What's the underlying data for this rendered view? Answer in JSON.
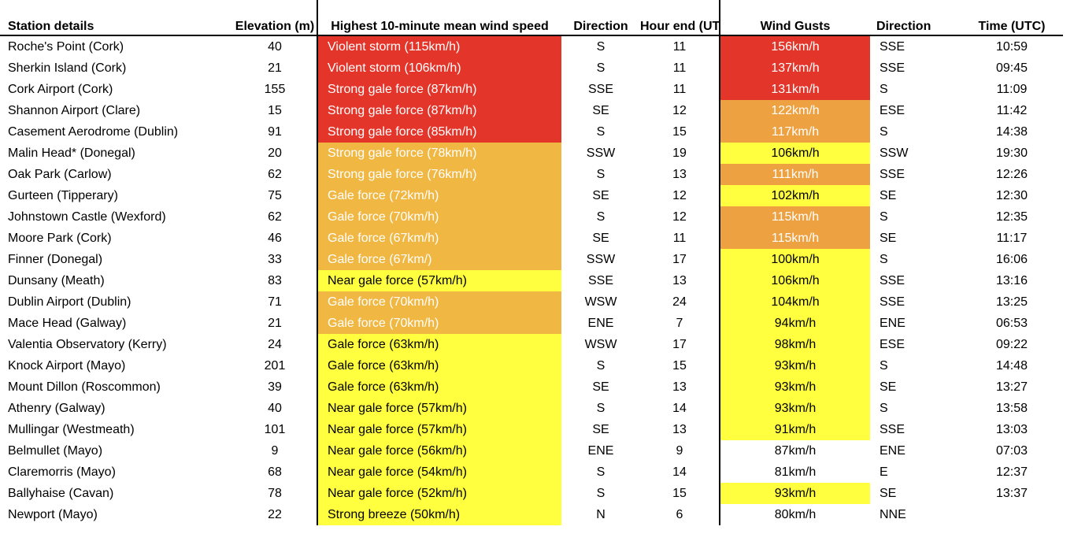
{
  "headers": {
    "station": "Station details",
    "elevation": "Elevation (m)",
    "mean_wind": "Highest 10-minute mean wind speed",
    "direction": "Direction",
    "hour_end": "Hour end (UTC)",
    "gusts": "Wind Gusts",
    "gust_direction": "Direction",
    "time": "Time (UTC)"
  },
  "colors": {
    "red": "#E4352A",
    "orange": "#EDA141",
    "amber": "#F0B742",
    "yellow": "#FFFF40",
    "white": "#FFFFFF"
  },
  "rows": [
    {
      "station": "Roche's Point (Cork)",
      "elevation": "40",
      "speed": "Violent storm (115km/h)",
      "direction": "S",
      "hour": "11",
      "gust": "156km/h",
      "gust_dir": "SSE",
      "time": "10:59",
      "speed_bg": "red",
      "gust_bg": "red"
    },
    {
      "station": "Sherkin Island (Cork)",
      "elevation": "21",
      "speed": "Violent storm (106km/h)",
      "direction": "S",
      "hour": "11",
      "gust": "137km/h",
      "gust_dir": "SSE",
      "time": "09:45",
      "speed_bg": "red",
      "gust_bg": "red"
    },
    {
      "station": "Cork Airport (Cork)",
      "elevation": "155",
      "speed": "Strong gale force (87km/h)",
      "direction": "SSE",
      "hour": "11",
      "gust": "131km/h",
      "gust_dir": "S",
      "time": "11:09",
      "speed_bg": "red",
      "gust_bg": "red"
    },
    {
      "station": "Shannon Airport (Clare)",
      "elevation": "15",
      "speed": "Strong gale force (87km/h)",
      "direction": "SE",
      "hour": "12",
      "gust": "122km/h",
      "gust_dir": "ESE",
      "time": "11:42",
      "speed_bg": "red",
      "gust_bg": "orange"
    },
    {
      "station": "Casement Aerodrome (Dublin)",
      "elevation": "91",
      "speed": "Strong gale force (85km/h)",
      "direction": "S",
      "hour": "15",
      "gust": "117km/h",
      "gust_dir": "S",
      "time": "14:38",
      "speed_bg": "red",
      "gust_bg": "orange"
    },
    {
      "station": "Malin Head* (Donegal)",
      "elevation": "20",
      "speed": "Strong gale force (78km/h)",
      "direction": "SSW",
      "hour": "19",
      "gust": "106km/h",
      "gust_dir": "SSW",
      "time": "19:30",
      "speed_bg": "amber",
      "gust_bg": "yellow"
    },
    {
      "station": "Oak Park (Carlow)",
      "elevation": "62",
      "speed": "Strong gale force (76km/h)",
      "direction": "S",
      "hour": "13",
      "gust": "111km/h",
      "gust_dir": "SSE",
      "time": "12:26",
      "speed_bg": "amber",
      "gust_bg": "orange"
    },
    {
      "station": "Gurteen (Tipperary)",
      "elevation": "75",
      "speed": "Gale force (72km/h)",
      "direction": "SE",
      "hour": "12",
      "gust": "102km/h",
      "gust_dir": "SE",
      "time": "12:30",
      "speed_bg": "amber",
      "gust_bg": "yellow"
    },
    {
      "station": "Johnstown Castle (Wexford)",
      "elevation": "62",
      "speed": "Gale force (70km/h)",
      "direction": "S",
      "hour": "12",
      "gust": "115km/h",
      "gust_dir": "S",
      "time": "12:35",
      "speed_bg": "amber",
      "gust_bg": "orange"
    },
    {
      "station": "Moore Park (Cork)",
      "elevation": "46",
      "speed": "Gale force (67km/h)",
      "direction": "SE",
      "hour": "11",
      "gust": "115km/h",
      "gust_dir": "SE",
      "time": "11:17",
      "speed_bg": "amber",
      "gust_bg": "orange"
    },
    {
      "station": "Finner (Donegal)",
      "elevation": "33",
      "speed": "Gale force (67km/)",
      "direction": "SSW",
      "hour": "17",
      "gust": "100km/h",
      "gust_dir": "S",
      "time": "16:06",
      "speed_bg": "amber",
      "gust_bg": "yellow"
    },
    {
      "station": "Dunsany (Meath)",
      "elevation": "83",
      "speed": "Near gale force (57km/h)",
      "direction": "SSE",
      "hour": "13",
      "gust": "106km/h",
      "gust_dir": "SSE",
      "time": "13:16",
      "speed_bg": "yellow",
      "gust_bg": "yellow"
    },
    {
      "station": "Dublin Airport (Dublin)",
      "elevation": "71",
      "speed": "Gale force (70km/h)",
      "direction": "WSW",
      "hour": "24",
      "gust": "104km/h",
      "gust_dir": "SSE",
      "time": "13:25",
      "speed_bg": "amber",
      "gust_bg": "yellow"
    },
    {
      "station": "Mace Head (Galway)",
      "elevation": "21",
      "speed": "Gale force (70km/h)",
      "direction": "ENE",
      "hour": "7",
      "gust": "94km/h",
      "gust_dir": "ENE",
      "time": "06:53",
      "speed_bg": "amber",
      "gust_bg": "yellow"
    },
    {
      "station": "Valentia Observatory (Kerry)",
      "elevation": "24",
      "speed": "Gale force (63km/h)",
      "direction": "WSW",
      "hour": "17",
      "gust": "98km/h",
      "gust_dir": "ESE",
      "time": "09:22",
      "speed_bg": "yellow",
      "gust_bg": "yellow"
    },
    {
      "station": "Knock Airport (Mayo)",
      "elevation": "201",
      "speed": "Gale force (63km/h)",
      "direction": "S",
      "hour": "15",
      "gust": "93km/h",
      "gust_dir": "S",
      "time": "14:48",
      "speed_bg": "yellow",
      "gust_bg": "yellow"
    },
    {
      "station": "Mount Dillon (Roscommon)",
      "elevation": "39",
      "speed": "Gale force (63km/h)",
      "direction": "SE",
      "hour": "13",
      "gust": "93km/h",
      "gust_dir": "SE",
      "time": "13:27",
      "speed_bg": "yellow",
      "gust_bg": "yellow"
    },
    {
      "station": "Athenry (Galway)",
      "elevation": "40",
      "speed": "Near gale force (57km/h)",
      "direction": "S",
      "hour": "14",
      "gust": "93km/h",
      "gust_dir": "S",
      "time": "13:58",
      "speed_bg": "yellow",
      "gust_bg": "yellow"
    },
    {
      "station": "Mullingar (Westmeath)",
      "elevation": "101",
      "speed": "Near gale force (57km/h)",
      "direction": "SE",
      "hour": "13",
      "gust": "91km/h",
      "gust_dir": "SSE",
      "time": "13:03",
      "speed_bg": "yellow",
      "gust_bg": "yellow"
    },
    {
      "station": "Belmullet (Mayo)",
      "elevation": "9",
      "speed": "Near gale force (56km/h)",
      "direction": "ENE",
      "hour": "9",
      "gust": "87km/h",
      "gust_dir": "ENE",
      "time": "07:03",
      "speed_bg": "yellow",
      "gust_bg": "white"
    },
    {
      "station": "Claremorris (Mayo)",
      "elevation": "68",
      "speed": "Near gale force (54km/h)",
      "direction": "S",
      "hour": "14",
      "gust": "81km/h",
      "gust_dir": "E",
      "time": "12:37",
      "speed_bg": "yellow",
      "gust_bg": "white"
    },
    {
      "station": "Ballyhaise (Cavan)",
      "elevation": "78",
      "speed": "Near gale force (52km/h)",
      "direction": "S",
      "hour": "15",
      "gust": "93km/h",
      "gust_dir": "SE",
      "time": "13:37",
      "speed_bg": "yellow",
      "gust_bg": "yellow"
    },
    {
      "station": "Newport (Mayo)",
      "elevation": "22",
      "speed": "Strong breeze (50km/h)",
      "direction": "N",
      "hour": "6",
      "gust": "80km/h",
      "gust_dir": "NNE",
      "time": "",
      "speed_bg": "yellow",
      "gust_bg": "white"
    }
  ]
}
